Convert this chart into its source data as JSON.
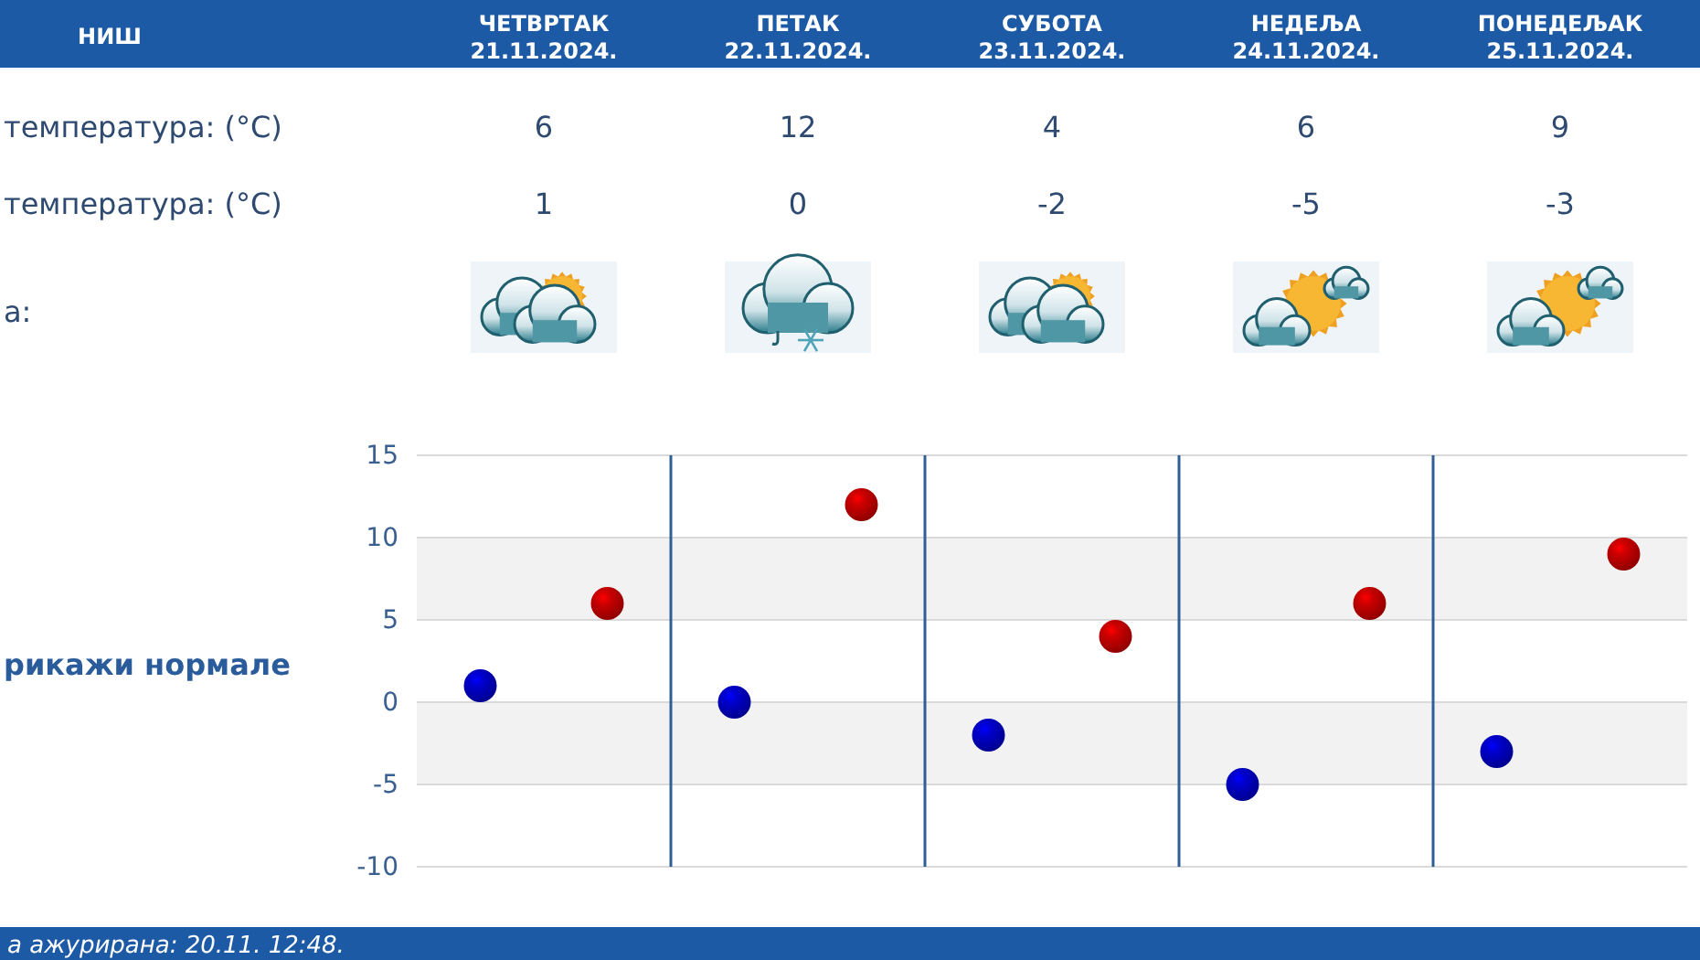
{
  "chart_data": {
    "type": "scatter",
    "title": "НИШ",
    "categories": [
      null,
      null,
      null,
      null,
      null
    ],
    "series": [
      {
        "color": "#cc0000",
        "values": [
          6,
          12,
          4,
          6,
          9
        ]
      },
      {
        "color": "#0000cc",
        "values": [
          1,
          0,
          -2,
          -5,
          -3
        ]
      }
    ],
    "ylim": [
      -10,
      15
    ],
    "yticks": [
      -10,
      -5,
      0,
      5,
      10,
      15
    ],
    "grid": true,
    "marker": "circle",
    "data_labels": true,
    "annotations": [
      "ЧЕТВРТАК 21.11.2024.",
      "ПЕТАК 22.11.2024.",
      "СУБОТА 23.11.2024.",
      "НЕДЕЉА 24.11.2024.",
      "ПОНЕДЕЉАК 25.11.2024.",
      "температура: (°C)",
      "температура: (°C)",
      "а:",
      "рикажи нормале",
      "а ажурирана: 20.11. 12:48."
    ]
  }
}
